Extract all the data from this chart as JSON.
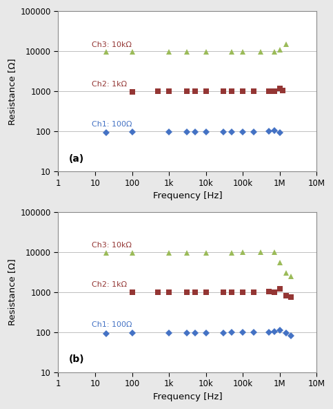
{
  "subplot_a": {
    "label": "(a)",
    "ch1": {
      "name": "Ch1: 100Ω",
      "color": "#4472C4",
      "marker": "D",
      "freqs": [
        20,
        100,
        1000,
        3000,
        5000,
        10000,
        30000,
        50000,
        100000,
        200000,
        500000,
        700000,
        1000000
      ],
      "vals": [
        95,
        97,
        98,
        97,
        96,
        97,
        97,
        97,
        98,
        99,
        100,
        105,
        95
      ]
    },
    "ch2": {
      "name": "Ch2: 1kΩ",
      "color": "#943634",
      "marker": "s",
      "freqs": [
        100,
        500,
        1000,
        3000,
        5000,
        10000,
        30000,
        50000,
        100000,
        200000,
        500000,
        700000,
        1000000,
        1200000
      ],
      "vals": [
        990,
        1000,
        1000,
        1000,
        1000,
        1000,
        1000,
        1000,
        1000,
        1005,
        1010,
        1000,
        1200,
        1050
      ]
    },
    "ch3": {
      "name": "Ch3: 10kΩ",
      "color": "#9BBB59",
      "marker": "^",
      "freqs": [
        20,
        100,
        1000,
        3000,
        10000,
        50000,
        100000,
        300000,
        700000,
        1000000,
        1500000
      ],
      "vals": [
        9500,
        9500,
        9600,
        9600,
        9600,
        9600,
        9700,
        9700,
        9800,
        11000,
        15000
      ]
    }
  },
  "subplot_b": {
    "label": "(b)",
    "ch1": {
      "name": "Ch1: 100Ω",
      "color": "#4472C4",
      "marker": "D",
      "freqs": [
        20,
        100,
        1000,
        3000,
        5000,
        10000,
        30000,
        50000,
        100000,
        200000,
        500000,
        700000,
        1000000,
        1500000,
        2000000
      ],
      "vals": [
        92,
        95,
        97,
        96,
        97,
        97,
        97,
        98,
        99,
        100,
        100,
        105,
        112,
        95,
        80
      ]
    },
    "ch2": {
      "name": "Ch2: 1kΩ",
      "color": "#943634",
      "marker": "s",
      "freqs": [
        100,
        500,
        1000,
        3000,
        5000,
        10000,
        30000,
        50000,
        100000,
        200000,
        500000,
        700000,
        1000000,
        1500000,
        2000000
      ],
      "vals": [
        990,
        1000,
        1000,
        1000,
        1000,
        1000,
        1000,
        1000,
        1000,
        1005,
        1010,
        1000,
        1200,
        800,
        750
      ]
    },
    "ch3": {
      "name": "Ch3: 10kΩ",
      "color": "#9BBB59",
      "marker": "^",
      "freqs": [
        20,
        100,
        1000,
        3000,
        10000,
        50000,
        100000,
        300000,
        700000,
        1000000,
        1500000,
        2000000
      ],
      "vals": [
        9500,
        9500,
        9600,
        9600,
        9600,
        9600,
        9700,
        9700,
        9800,
        5500,
        3000,
        2500
      ]
    }
  },
  "xlabel": "Frequency [Hz]",
  "ylabel": "Resistance [Ω]",
  "xlim": [
    1,
    10000000.0
  ],
  "ylim": [
    10,
    100000
  ],
  "fig_color": "#E8E8E8",
  "plot_bg": "#FFFFFF",
  "gridcolor": "#BEBEBE",
  "ch1_label_color": "#4472C4",
  "ch2_label_color": "#943634",
  "ch3_label_color": "#943634",
  "xtick_vals": [
    1,
    10,
    100,
    1000,
    10000,
    100000,
    1000000,
    10000000
  ],
  "xtick_labels": [
    "1",
    "10",
    "100",
    "1k",
    "10k",
    "100k",
    "1M",
    "10M"
  ],
  "ytick_vals": [
    10,
    100,
    1000,
    10000,
    100000
  ],
  "ytick_labels": [
    "10",
    "100",
    "1000",
    "10000",
    "100000"
  ]
}
